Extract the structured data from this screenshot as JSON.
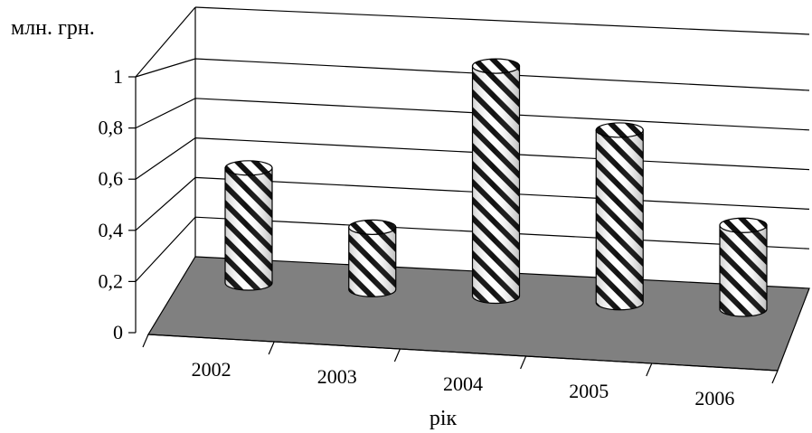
{
  "chart_data": {
    "type": "bar",
    "style": "3d-cylinder",
    "categories": [
      "2002",
      "2003",
      "2004",
      "2005",
      "2006"
    ],
    "values": [
      0.48,
      0.26,
      0.96,
      0.72,
      0.35
    ],
    "ylabel": "млн. грн.",
    "xlabel": "рік",
    "ylim": [
      0,
      1
    ],
    "yticks": [
      "0",
      "0,2",
      "0,4",
      "0,6",
      "0,8",
      "1"
    ],
    "grid": true,
    "floor_color": "#808080",
    "bar_fill": "hatched black-white diagonal"
  }
}
